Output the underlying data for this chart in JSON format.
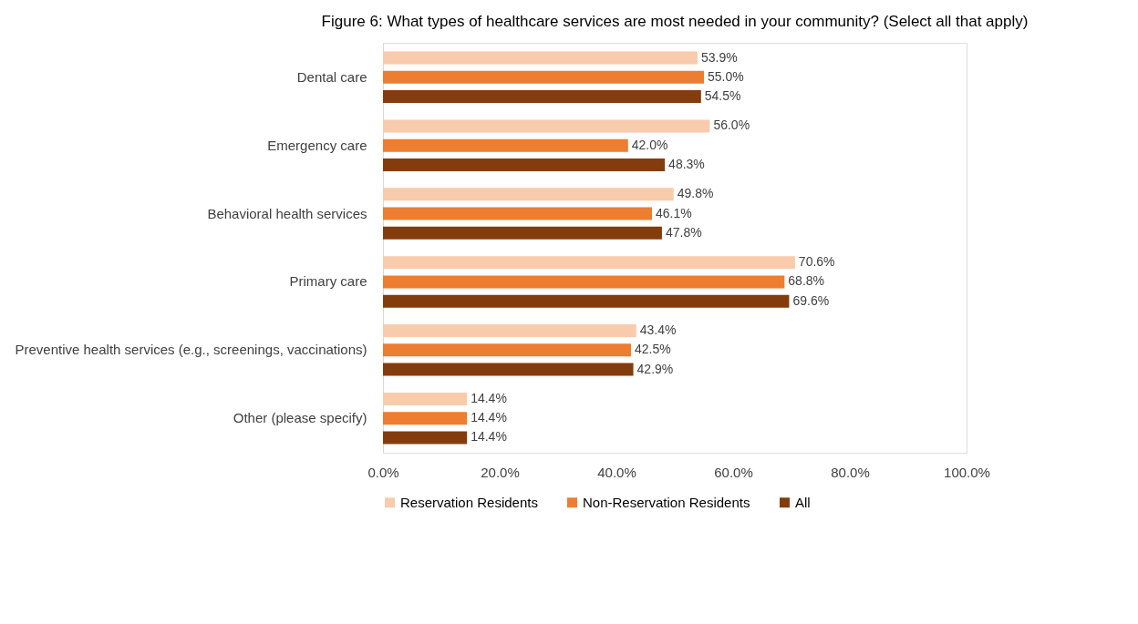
{
  "chart_data": {
    "type": "bar",
    "orientation": "horizontal",
    "title": "Figure 6: What types of healthcare services are most needed in your community? (Select all that apply)",
    "categories": [
      "Dental care",
      "Emergency care",
      "Behavioral health services",
      "Primary care",
      "Preventive health services (e.g., screenings, vaccinations)",
      "Other (please specify)"
    ],
    "series": [
      {
        "name": "Reservation Residents",
        "color": "#f8cbad",
        "values": [
          53.9,
          56.0,
          49.8,
          70.6,
          43.4,
          14.4
        ],
        "value_labels": [
          "53.9%",
          "56.0%",
          "49.8%",
          "70.6%",
          "43.4%",
          "14.4%"
        ]
      },
      {
        "name": "Non-Reservation Residents",
        "color": "#ed7d31",
        "values": [
          55.0,
          42.0,
          46.1,
          68.8,
          42.5,
          14.4
        ],
        "value_labels": [
          "55.0%",
          "42.0%",
          "46.1%",
          "68.8%",
          "42.5%",
          "14.4%"
        ]
      },
      {
        "name": "All",
        "color": "#843c0c",
        "values": [
          54.5,
          48.3,
          47.8,
          69.6,
          42.9,
          14.4
        ],
        "value_labels": [
          "54.5%",
          "48.3%",
          "47.8%",
          "69.6%",
          "42.9%",
          "14.4%"
        ]
      }
    ],
    "xlim": [
      0,
      100
    ],
    "xticks": [
      {
        "value": 0,
        "label": "0.0%"
      },
      {
        "value": 20,
        "label": "20.0%"
      },
      {
        "value": 40,
        "label": "40.0%"
      },
      {
        "value": 60,
        "label": "60.0%"
      },
      {
        "value": 80,
        "label": "80.0%"
      },
      {
        "value": 100,
        "label": "100.0%"
      }
    ],
    "grid": false,
    "legend": "bottom"
  }
}
